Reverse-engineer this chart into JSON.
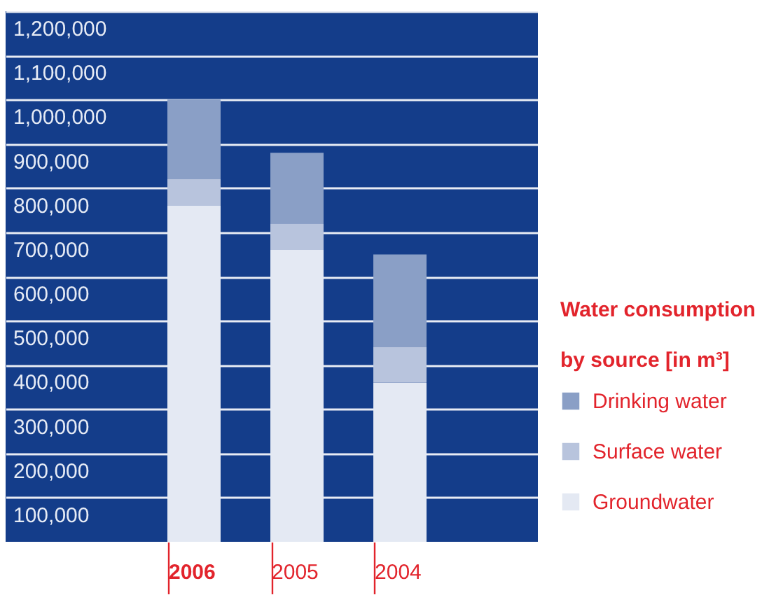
{
  "chart_data": {
    "type": "bar",
    "stacked": true,
    "legend_title": "Water consumption by source [in m³]",
    "legend": "right",
    "grid": "y",
    "categories": [
      "2006",
      "2005",
      "2004"
    ],
    "series": [
      {
        "name": "Groundwater",
        "color": "#e4e9f3",
        "values": [
          760000,
          660000,
          360000
        ]
      },
      {
        "name": "Surface water",
        "color": "#b8c4dd",
        "values": [
          60000,
          60000,
          80000
        ]
      },
      {
        "name": "Drinking water",
        "color": "#8a9fc6",
        "values": [
          180000,
          160000,
          210000
        ]
      }
    ],
    "ylim": [
      0,
      1200000
    ],
    "yticks": [
      {
        "value": 100000,
        "label": "100,000"
      },
      {
        "value": 200000,
        "label": "200,000"
      },
      {
        "value": 300000,
        "label": "300,000"
      },
      {
        "value": 400000,
        "label": "400,000"
      },
      {
        "value": 500000,
        "label": "500,000"
      },
      {
        "value": 600000,
        "label": "600,000"
      },
      {
        "value": 700000,
        "label": "700,000"
      },
      {
        "value": 800000,
        "label": "800,000"
      },
      {
        "value": 900000,
        "label": "900,000"
      },
      {
        "value": 1000000,
        "label": "1,000,000"
      },
      {
        "value": 1100000,
        "label": "1,100,000"
      },
      {
        "value": 1200000,
        "label": "1,200,000"
      }
    ]
  }
}
